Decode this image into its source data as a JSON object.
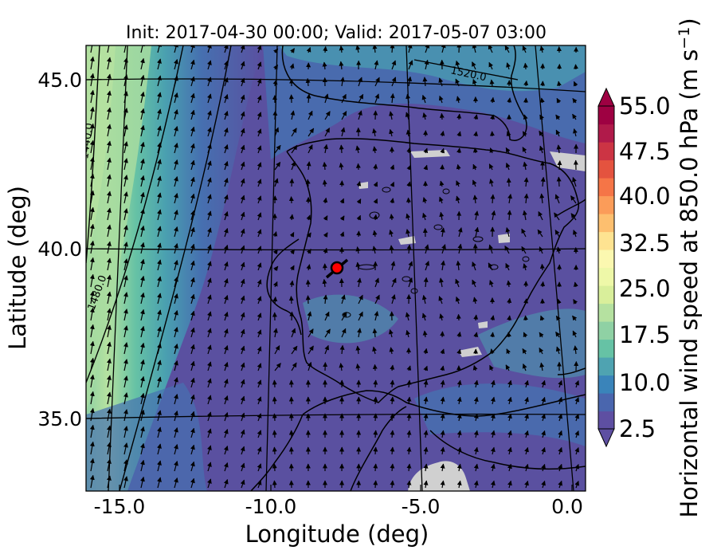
{
  "title": "Init: 2017-04-30 00:00; Valid: 2017-05-07 03:00",
  "xlabel": "Longitude (deg)",
  "ylabel": "Latitude (deg)",
  "x_ticks": [
    "-15.0",
    "-10.0",
    "-5.0",
    "0.0"
  ],
  "y_ticks": [
    "45.0",
    "40.0",
    "35.0"
  ],
  "colorbar": {
    "label": "Horizontal wind speed at 850.0 hPa (m s",
    "label_sup": "−1",
    "label_end": ")",
    "ticks": [
      "55.0",
      "47.5",
      "40.0",
      "32.5",
      "25.0",
      "17.5",
      "10.0",
      "2.5"
    ],
    "colors": [
      "#5e4fa2",
      "#4a66ae",
      "#3a84ba",
      "#4fa3b1",
      "#66c2a5",
      "#8fd1a4",
      "#b5e1a0",
      "#d9ef9b",
      "#eef8a8",
      "#fbf8b0",
      "#fee391",
      "#fdbf6f",
      "#fb9c59",
      "#f57547",
      "#e4533f",
      "#cc3444",
      "#b01a4a",
      "#9e0142"
    ],
    "over_color": "#9e0142",
    "under_color": "#5e4fa2"
  },
  "contour_labels": [
    "1520.0",
    "1480.0",
    "1440.0"
  ],
  "marker": {
    "lon": -7.7,
    "lat": 39.3,
    "color": "#ff0000"
  },
  "map_colors": {
    "deep": "#5a50a0",
    "mid": "#4670b0",
    "teal": "#4aa0b0",
    "green": "#78c8a4",
    "lightgreen": "#a8dca0",
    "missing": "#d0d0d0"
  }
}
